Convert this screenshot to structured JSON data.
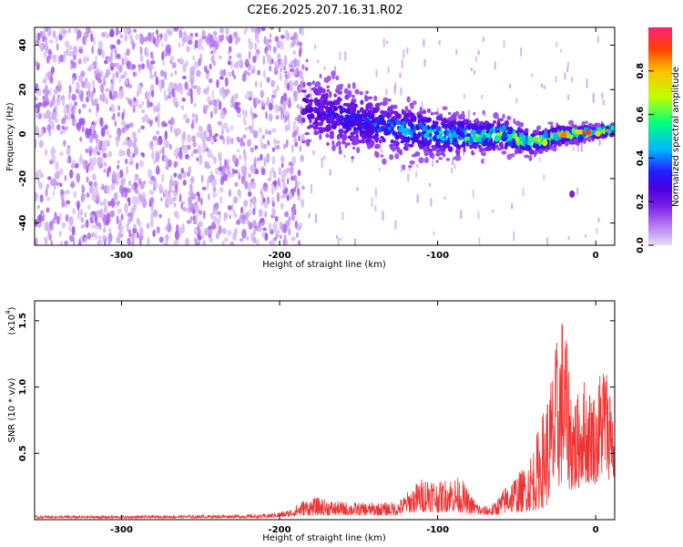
{
  "title": "C2E6.2025.207.16.31.R02",
  "chart_data": [
    {
      "type": "heatmap",
      "title": "C2E6.2025.207.16.31.R02",
      "xlabel": "Height of straight line (km)",
      "ylabel": "Frequency (Hz)",
      "xlim": [
        -355,
        12
      ],
      "ylim": [
        -50,
        48
      ],
      "x_ticks": [
        -300,
        -200,
        -100,
        0
      ],
      "y_ticks": [
        -40,
        -20,
        0,
        20,
        40
      ],
      "colorbar": {
        "label": "Normalized spectral amplitude",
        "range": [
          0,
          1
        ],
        "ticks": [
          0.0,
          0.2,
          0.4,
          0.6,
          0.8
        ],
        "colors": [
          "#e8dcf8",
          "#b070f0",
          "#7a1fe8",
          "#4a00e0",
          "#2020ff",
          "#00b8ff",
          "#00ff80",
          "#c0ff00",
          "#ffc000",
          "#ff4000",
          "#ff2080"
        ]
      },
      "regions": [
        {
          "name": "broadband noise",
          "x_range": [
            -355,
            -185
          ],
          "y_range": [
            -50,
            48
          ],
          "amplitude": [
            0.02,
            0.15
          ]
        },
        {
          "name": "signal track",
          "points": [
            [
              -185,
              12
            ],
            [
              -160,
              7
            ],
            [
              -140,
              4
            ],
            [
              -120,
              2
            ],
            [
              -100,
              0
            ],
            [
              -80,
              -1
            ],
            [
              -60,
              0
            ],
            [
              -40,
              -4
            ],
            [
              -25,
              -1
            ],
            [
              -15,
              0
            ],
            [
              0,
              1
            ],
            [
              12,
              2
            ]
          ],
          "amplitude_peak": 0.95
        },
        {
          "name": "isolated spot",
          "x": -15,
          "y": -27,
          "amplitude": 0.2
        }
      ]
    },
    {
      "type": "line",
      "xlabel": "Height of straight line (km)",
      "ylabel": "SNR (10 * v/v)",
      "y_multiplier": "(x10^4)",
      "y_multiplier_base": "(x10",
      "y_multiplier_exp": "4",
      "xlim": [
        -355,
        12
      ],
      "ylim": [
        0,
        1.65
      ],
      "x_ticks": [
        -300,
        -200,
        -100,
        0
      ],
      "y_ticks": [
        0.5,
        1.0,
        1.5
      ],
      "series": [
        {
          "color": "#ee3333",
          "x": [
            -355,
            -300,
            -250,
            -210,
            -195,
            -185,
            -175,
            -165,
            -150,
            -135,
            -125,
            -120,
            -112,
            -105,
            -100,
            -92,
            -85,
            -80,
            -72,
            -65,
            -60,
            -55,
            -50,
            -45,
            -40,
            -35,
            -30,
            -27,
            -25,
            -22,
            -20,
            -18,
            -15,
            -12,
            -10,
            -8,
            -5,
            -2,
            0,
            3,
            6,
            8,
            10,
            12
          ],
          "ymax": [
            0.03,
            0.03,
            0.035,
            0.04,
            0.07,
            0.15,
            0.17,
            0.14,
            0.13,
            0.13,
            0.14,
            0.2,
            0.3,
            0.35,
            0.28,
            0.33,
            0.32,
            0.2,
            0.1,
            0.12,
            0.2,
            0.3,
            0.35,
            0.4,
            0.55,
            0.75,
            1.0,
            1.2,
            1.35,
            1.55,
            1.63,
            1.3,
            1.05,
            0.95,
            1.0,
            1.1,
            1.0,
            1.05,
            0.9,
            1.2,
            1.3,
            1.0,
            1.25,
            0.35
          ],
          "ymin": [
            0.01,
            0.01,
            0.012,
            0.012,
            0.02,
            0.03,
            0.03,
            0.03,
            0.03,
            0.03,
            0.03,
            0.05,
            0.05,
            0.06,
            0.05,
            0.06,
            0.05,
            0.04,
            0.03,
            0.03,
            0.04,
            0.05,
            0.05,
            0.06,
            0.06,
            0.08,
            0.1,
            0.15,
            0.2,
            0.25,
            0.3,
            0.25,
            0.2,
            0.2,
            0.25,
            0.3,
            0.25,
            0.3,
            0.25,
            0.3,
            0.35,
            0.3,
            0.3,
            0.3
          ]
        }
      ]
    }
  ]
}
